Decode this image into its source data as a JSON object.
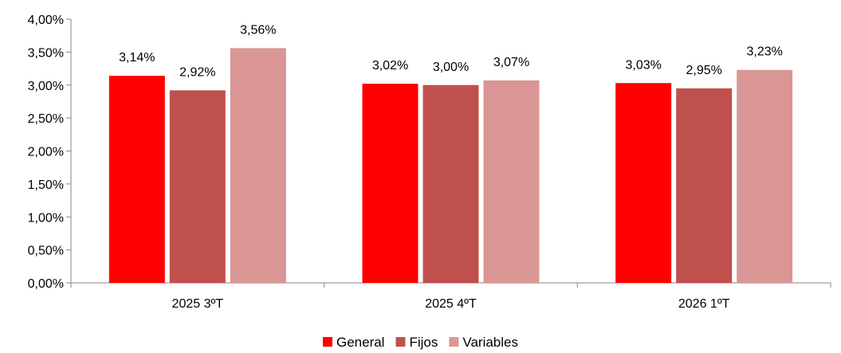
{
  "chart_data": {
    "type": "bar",
    "categories": [
      "2025 3ºT",
      "2025 4ºT",
      "2026 1ºT"
    ],
    "series": [
      {
        "name": "General",
        "color": "#ff0000",
        "values": [
          3.14,
          3.02,
          3.03
        ],
        "labels": [
          "3,14%",
          "3,02%",
          "3,03%"
        ]
      },
      {
        "name": "Fijos",
        "color": "#c0504d",
        "values": [
          2.92,
          3.0,
          2.95
        ],
        "labels": [
          "2,92%",
          "3,00%",
          "2,95%"
        ]
      },
      {
        "name": "Variables",
        "color": "#d99694",
        "values": [
          3.56,
          3.07,
          3.23
        ],
        "labels": [
          "3,56%",
          "3,07%",
          "3,23%"
        ]
      }
    ],
    "ylim": [
      0,
      4
    ],
    "yticks": [
      0,
      0.5,
      1,
      1.5,
      2,
      2.5,
      3,
      3.5,
      4
    ],
    "ytick_labels": [
      "0,00%",
      "0,50%",
      "1,00%",
      "1,50%",
      "2,00%",
      "2,50%",
      "3,00%",
      "3,50%",
      "4,00%"
    ],
    "grid": false,
    "legend_position": "bottom-center"
  }
}
